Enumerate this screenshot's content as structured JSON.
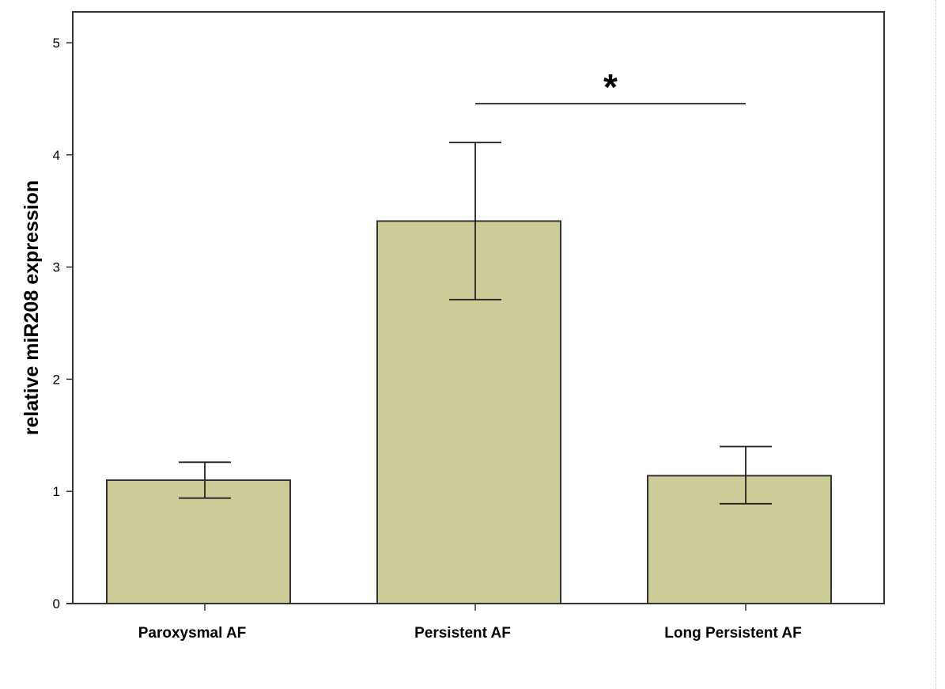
{
  "chart_data": {
    "type": "bar",
    "categories": [
      "Paroxysmal AF",
      "Persistent  AF",
      "Long Persistent AF"
    ],
    "values": [
      1.1,
      3.41,
      1.14
    ],
    "error_low": [
      0.94,
      2.71,
      0.89
    ],
    "error_high": [
      1.26,
      4.11,
      1.4
    ],
    "xlabel": "",
    "ylabel": "relative miR208 expression",
    "ylim": [
      0,
      5.3
    ],
    "yticks": [
      0,
      1,
      2,
      3,
      4,
      5
    ],
    "grid": false,
    "bar_color": "#cccc99",
    "bar_edge_color": "#333333",
    "significance": {
      "between": [
        1,
        2
      ],
      "label": "*",
      "y": 4.45
    }
  }
}
